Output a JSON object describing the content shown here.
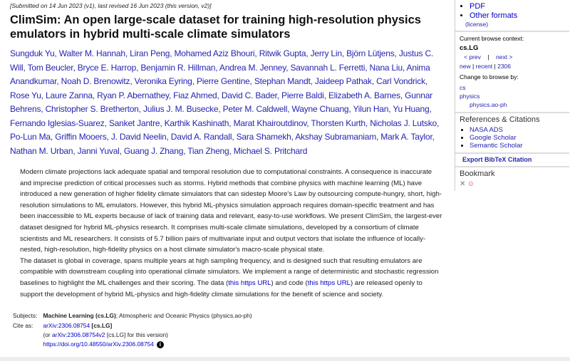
{
  "dateline": "[Submitted on 14 Jun 2023 (v1), last revised 16 Jun 2023 (this version, v2)]",
  "title": "ClimSim: An open large-scale dataset for training high-resolution physics emulators in hybrid multi-scale climate simulators",
  "authors": [
    "Sungduk Yu",
    "Walter M. Hannah",
    "Liran Peng",
    "Mohamed Aziz Bhouri",
    "Ritwik Gupta",
    "Jerry Lin",
    "Björn Lütjens",
    "Justus C. Will",
    "Tom Beucler",
    "Bryce E. Harrop",
    "Benjamin R. Hillman",
    "Andrea M. Jenney",
    "Savannah L. Ferretti",
    "Nana Liu",
    "Anima Anandkumar",
    "Noah D. Brenowitz",
    "Veronika Eyring",
    "Pierre Gentine",
    "Stephan Mandt",
    "Jaideep Pathak",
    "Carl Vondrick",
    "Rose Yu",
    "Laure Zanna",
    "Ryan P. Abernathey",
    "Fiaz Ahmed",
    "David C. Bader",
    "Pierre Baldi",
    "Elizabeth A. Barnes",
    "Gunnar Behrens",
    "Christopher S. Bretherton",
    "Julius J. M. Busecke",
    "Peter M. Caldwell",
    "Wayne Chuang",
    "Yilun Han",
    "Yu Huang",
    "Fernando Iglesias-Suarez",
    "Sanket Jantre",
    "Karthik Kashinath",
    "Marat Khairoutdinov",
    "Thorsten Kurth",
    "Nicholas J. Lutsko",
    "Po-Lun Ma",
    "Griffin Mooers",
    "J. David Neelin",
    "David A. Randall",
    "Sara Shamekh",
    "Akshay Subramaniam",
    "Mark A. Taylor",
    "Nathan M. Urban",
    "Janni Yuval",
    "Guang J. Zhang",
    "Tian Zheng",
    "Michael S. Pritchard"
  ],
  "abstract": {
    "p1": "Modern climate projections lack adequate spatial and temporal resolution due to computational constraints. A consequence is inaccurate and imprecise prediction of critical processes such as storms. Hybrid methods that combine physics with machine learning (ML) have introduced a new generation of higher fidelity climate simulators that can sidestep Moore's Law by outsourcing compute-hungry, short, high-resolution simulations to ML emulators. However, this hybrid ML-physics simulation approach requires domain-specific treatment and has been inaccessible to ML experts because of lack of training data and relevant, easy-to-use workflows. We present ClimSim, the largest-ever dataset designed for hybrid ML-physics research. It comprises multi-scale climate simulations, developed by a consortium of climate scientists and ML researchers. It consists of 5.7 billion pairs of multivariate input and output vectors that isolate the influence of locally-nested, high-resolution, high-fidelity physics on a host climate simulator's macro-scale physical state.",
    "p2a": "The dataset is global in coverage, spans multiple years at high sampling frequency, and is designed such that resulting emulators are compatible with downstream coupling into operational climate simulators. We implement a range of deterministic and stochastic regression baselines to highlight the ML challenges and their scoring. The data (",
    "link1": "this https URL",
    "p2b": ") and code (",
    "link2": "this https URL",
    "p2c": ") are released openly to support the development of hybrid ML-physics and high-fidelity climate simulations for the benefit of science and society."
  },
  "meta": {
    "subjects_label": "Subjects:",
    "subject_primary": "Machine Learning (cs.LG)",
    "subject_rest": "; Atmospheric and Oceanic Physics (physics.ao-ph)",
    "cite_label": "Cite as:",
    "arxiv_id": "arXiv:2306.08754",
    "arxiv_cat": " [cs.LG]",
    "or_prefix": "(or ",
    "arxiv_v2": "arXiv:2306.08754v2",
    "or_suffix": " [cs.LG] for this version)",
    "doi": "https://doi.org/10.48550/arXiv.2306.08754",
    "info_glyph": "i"
  },
  "sidebar": {
    "pdf": "PDF",
    "other_formats": "Other formats",
    "license": "(license)",
    "context_label": "Current browse context:",
    "context": "cs.LG",
    "prev": "< prev",
    "sep": "|",
    "next": "next >",
    "new": "new",
    "recent": "recent",
    "month": "2306",
    "change_label": "Change to browse by:",
    "cs": "cs",
    "physics": "physics",
    "physics_ao": "physics.ao-ph",
    "refs_title": "References & Citations",
    "refs": [
      "NASA ADS",
      "Google Scholar",
      "Semantic Scholar"
    ],
    "bibtex": "Export BibTeX Citation",
    "bookmark": "Bookmark"
  }
}
